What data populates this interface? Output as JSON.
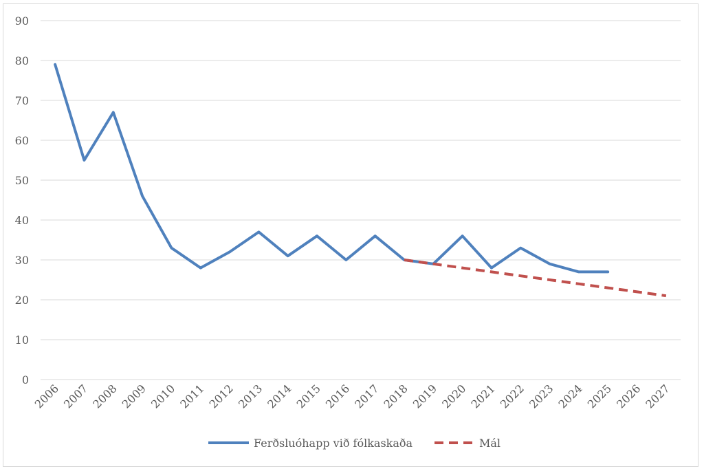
{
  "chart_data": {
    "type": "line",
    "x": [
      "2006",
      "2007",
      "2008",
      "2009",
      "2010",
      "2011",
      "2012",
      "2013",
      "2014",
      "2015",
      "2016",
      "2017",
      "2018",
      "2019",
      "2020",
      "2021",
      "2022",
      "2023",
      "2024",
      "2025",
      "2026",
      "2027"
    ],
    "ylim": [
      0,
      90
    ],
    "yticks": [
      0,
      10,
      20,
      30,
      40,
      50,
      60,
      70,
      80,
      90
    ],
    "grid": true,
    "legend_position": "bottom",
    "series": [
      {
        "name": "Ferðsluóhapp við fólkaskaða",
        "color": "#4f81bd",
        "style": "solid",
        "values": [
          79,
          55,
          67,
          46,
          33,
          28,
          32,
          37,
          31,
          36,
          30,
          36,
          30,
          29,
          36,
          28,
          33,
          29,
          27,
          27,
          null,
          null
        ]
      },
      {
        "name": "Mál",
        "color": "#c0504d",
        "style": "dashed",
        "values": [
          null,
          null,
          null,
          null,
          null,
          null,
          null,
          null,
          null,
          null,
          null,
          null,
          30,
          29,
          28,
          27,
          26,
          25,
          24,
          23,
          22,
          21
        ]
      }
    ]
  }
}
